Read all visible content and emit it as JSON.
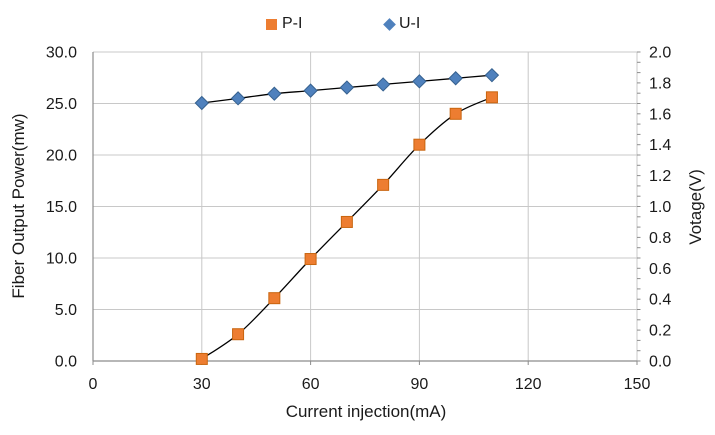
{
  "chart_data": {
    "type": "line",
    "title": "",
    "x": [
      30,
      40,
      50,
      60,
      70,
      80,
      90,
      100,
      110
    ],
    "series": [
      {
        "name": "P-I",
        "axis": "left",
        "marker": "square",
        "marker_color": "#ED7D31",
        "marker_edge": "#C9650F",
        "line_color": "#000000",
        "values": [
          0.2,
          2.6,
          6.1,
          9.9,
          13.5,
          17.1,
          21.0,
          24.0,
          25.6
        ]
      },
      {
        "name": "U-I",
        "axis": "right",
        "marker": "diamond",
        "marker_color": "#4F81BD",
        "marker_edge": "#36618F",
        "line_color": "#000000",
        "values": [
          1.67,
          1.7,
          1.73,
          1.75,
          1.77,
          1.79,
          1.81,
          1.83,
          1.85
        ]
      }
    ],
    "xlabel": "Current injection(mA)",
    "ylabel_left": "Fiber Output Power(mw)",
    "ylabel_right": "Votage(V)",
    "xlim": [
      0,
      150
    ],
    "xticks": [
      0,
      30,
      60,
      90,
      120,
      150
    ],
    "xtick_labels": [
      "0",
      "30",
      "60",
      "90",
      "120",
      "150"
    ],
    "ylim_left": [
      0,
      30
    ],
    "yticks_left": [
      0,
      5,
      10,
      15,
      20,
      25,
      30
    ],
    "ytick_labels_left": [
      "0.0",
      "5.0",
      "10.0",
      "15.0",
      "20.0",
      "25.0",
      "30.0"
    ],
    "ylim_right": [
      0,
      2
    ],
    "yticks_right": [
      0,
      0.2,
      0.4,
      0.6,
      0.8,
      1.0,
      1.2,
      1.4,
      1.6,
      1.8,
      2.0
    ],
    "ytick_labels_right": [
      "0.0",
      "0.2",
      "0.4",
      "0.6",
      "0.8",
      "1.0",
      "1.2",
      "1.4",
      "1.6",
      "1.8",
      "2.0"
    ],
    "grid": true,
    "legend_position": "top-center",
    "colors": {
      "grid": "#C8C8C8",
      "axis": "#8C8C8C",
      "text": "#1A1A1A",
      "background": "#FFFFFF"
    }
  }
}
